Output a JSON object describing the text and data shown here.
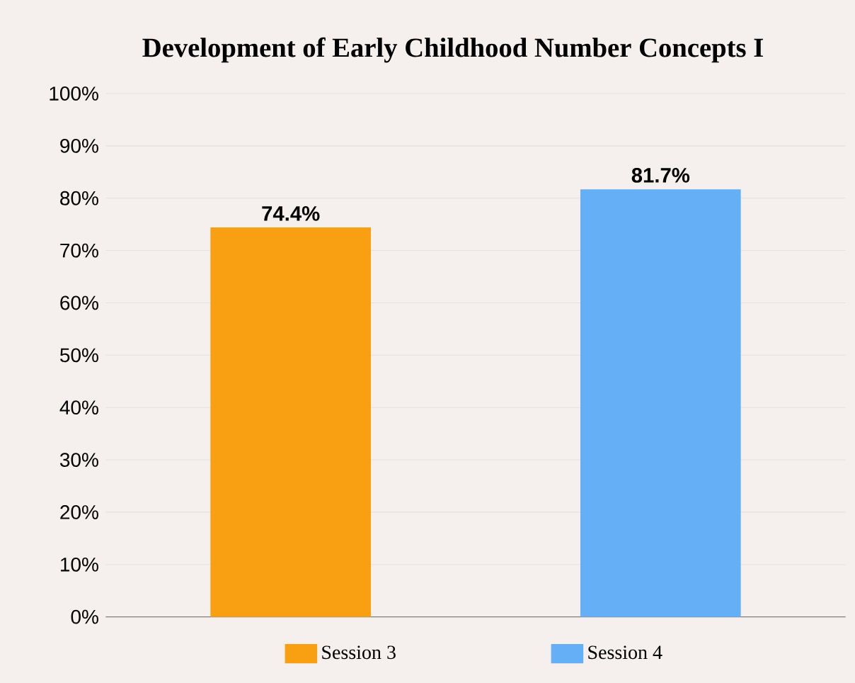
{
  "chart_data": {
    "type": "bar",
    "title": "Development of Early Childhood Number Concepts I",
    "categories": [
      null,
      null
    ],
    "series": [
      {
        "name": "Session 3",
        "color": "#f8a012",
        "values": [
          74.4,
          null
        ],
        "value_labels": [
          "74.4%",
          null
        ]
      },
      {
        "name": "Session 4",
        "color": "#64aff5",
        "values": [
          null,
          81.7
        ],
        "value_labels": [
          null,
          "81.7%"
        ]
      }
    ],
    "ylim": [
      0,
      100
    ],
    "yticks": [
      {
        "value": 0,
        "label": "0%"
      },
      {
        "value": 10,
        "label": "10%"
      },
      {
        "value": 20,
        "label": "20%"
      },
      {
        "value": 30,
        "label": "30%"
      },
      {
        "value": 40,
        "label": "40%"
      },
      {
        "value": 50,
        "label": "50%"
      },
      {
        "value": 60,
        "label": "60%"
      },
      {
        "value": 70,
        "label": "70%"
      },
      {
        "value": 80,
        "label": "80%"
      },
      {
        "value": 90,
        "label": "90%"
      },
      {
        "value": 100,
        "label": "100%"
      }
    ],
    "grid": "y",
    "legend": "bottom"
  }
}
